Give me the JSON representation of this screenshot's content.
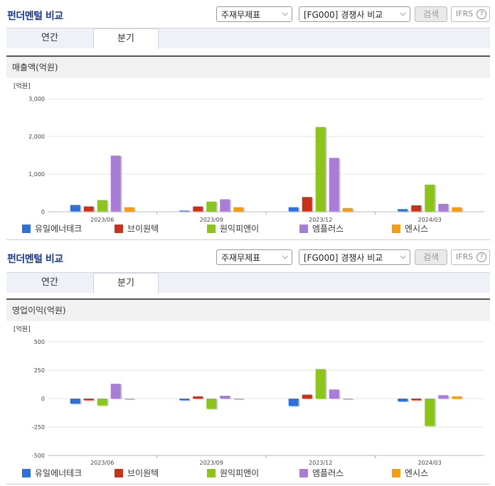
{
  "colors": {
    "series": [
      "#2f6fd8",
      "#c8321a",
      "#8cc41e",
      "#a97dd6",
      "#f59d12"
    ],
    "title": "#1a3a8a",
    "grid": "#e5e5e5"
  },
  "panels": [
    {
      "title": "펀더멘털 비교",
      "select1": "주재무제표",
      "select2": "[FG000] 경쟁사 비교",
      "search_button": "검색",
      "ifrs_label": "IFRS",
      "ifrs_help": "?",
      "tabs": [
        {
          "label": "연간",
          "active": false
        },
        {
          "label": "분기",
          "active": true
        }
      ],
      "chart_header": "매출액(억원)",
      "unit_label": "[억원]"
    },
    {
      "title": "펀더멘털 비교",
      "select1": "주재무제표",
      "select2": "[FG000] 경쟁사 비교",
      "search_button": "검색",
      "ifrs_label": "IFRS",
      "ifrs_help": "?",
      "tabs": [
        {
          "label": "연간",
          "active": false
        },
        {
          "label": "분기",
          "active": true
        }
      ],
      "chart_header": "영업이익(억원)",
      "unit_label": "[억원]"
    }
  ],
  "chart_data": [
    {
      "type": "bar",
      "title": "매출액(억원)",
      "ylabel": "[억원]",
      "categories": [
        "2023/06",
        "2023/09",
        "2023/12",
        "2024/03"
      ],
      "ylim": [
        0,
        3000
      ],
      "yticks": [
        0,
        1000,
        2000,
        3000
      ],
      "ytick_labels": [
        "0",
        "1,000",
        "2,000",
        "3,000"
      ],
      "grid": true,
      "legend": "bottom",
      "series": [
        {
          "name": "유일에너테크",
          "values": [
            180,
            30,
            120,
            70
          ]
        },
        {
          "name": "브이원텍",
          "values": [
            140,
            140,
            390,
            170
          ]
        },
        {
          "name": "원익피앤이",
          "values": [
            310,
            270,
            2250,
            720
          ]
        },
        {
          "name": "엠플러스",
          "values": [
            1490,
            330,
            1430,
            210
          ]
        },
        {
          "name": "엔시스",
          "values": [
            120,
            120,
            100,
            120
          ]
        }
      ]
    },
    {
      "type": "bar",
      "title": "영업이익(억원)",
      "ylabel": "[억원]",
      "categories": [
        "2023/06",
        "2023/09",
        "2023/12",
        "2024/03"
      ],
      "ylim": [
        -500,
        500
      ],
      "yticks": [
        -500,
        -250,
        0,
        250,
        500
      ],
      "ytick_labels": [
        "-500",
        "-250",
        "0",
        "250",
        "500"
      ],
      "grid": true,
      "legend": "bottom",
      "series": [
        {
          "name": "유일에너테크",
          "values": [
            -45,
            -15,
            -65,
            -25
          ]
        },
        {
          "name": "브이원텍",
          "values": [
            -15,
            20,
            35,
            -15
          ]
        },
        {
          "name": "원익피앤이",
          "values": [
            -60,
            -90,
            260,
            -240
          ]
        },
        {
          "name": "엠플러스",
          "values": [
            130,
            25,
            80,
            30
          ]
        },
        {
          "name": "엔시스",
          "values": [
            -5,
            0,
            0,
            20
          ]
        }
      ]
    }
  ]
}
